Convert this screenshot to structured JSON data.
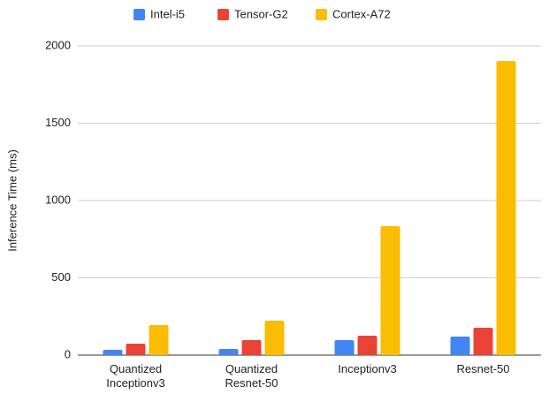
{
  "chart_data": {
    "type": "bar",
    "y_label": "Inference Time (ms)",
    "categories": [
      "Quantized Inceptionv3",
      "Quantized Resnet-50",
      "Inceptionv3",
      "Resnet-50"
    ],
    "series": [
      {
        "name": "Intel-i5",
        "color": "#4285f4",
        "values": [
          34,
          40,
          97,
          120
        ]
      },
      {
        "name": "Tensor-G2",
        "color": "#ea4335",
        "values": [
          74,
          97,
          126,
          177
        ]
      },
      {
        "name": "Cortex-A72",
        "color": "#fbbc04",
        "values": [
          194,
          223,
          834,
          1903
        ]
      }
    ],
    "ylim": [
      0,
      2000
    ],
    "yticks": [
      0,
      500,
      1000,
      1500,
      2000
    ],
    "grid": true,
    "legend": "top"
  }
}
